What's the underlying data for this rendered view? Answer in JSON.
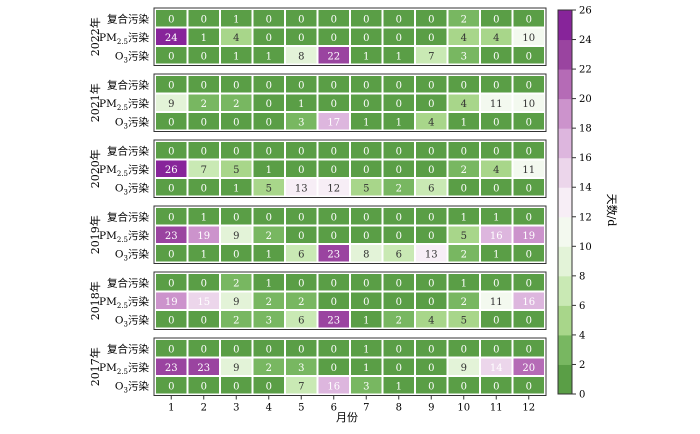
{
  "chart_data": {
    "type": "heatmap",
    "xlabel": "月份",
    "months": [
      "1",
      "2",
      "3",
      "4",
      "5",
      "6",
      "7",
      "8",
      "9",
      "10",
      "11",
      "12"
    ],
    "colorbar": {
      "label": "天数/d",
      "min": 0,
      "max": 26,
      "ticks": [
        "0",
        "2",
        "4",
        "6",
        "8",
        "10",
        "12",
        "14",
        "16",
        "18",
        "20",
        "22",
        "24",
        "26"
      ],
      "colors": [
        "#5a9e46",
        "#78b761",
        "#a8d68a",
        "#c9e9b4",
        "#e3f3d8",
        "#f3f9ef",
        "#f7eef6",
        "#ecd6eb",
        "#ddb6de",
        "#cc93cc",
        "#b56bb6",
        "#9a44a0",
        "#87249a"
      ]
    },
    "row_labels": {
      "compound": {
        "pre": "复合污染",
        "sub": "",
        "post": ""
      },
      "pm25": {
        "pre": "PM",
        "sub": "2.5",
        "post": "污染"
      },
      "o3": {
        "pre": "O",
        "sub": "3",
        "post": "污染"
      }
    },
    "years": [
      {
        "year": "2022年",
        "compound": [
          0,
          0,
          1,
          0,
          0,
          0,
          0,
          0,
          0,
          2,
          0,
          0
        ],
        "pm25": [
          24,
          1,
          4,
          0,
          0,
          0,
          0,
          0,
          0,
          4,
          4,
          10
        ],
        "o3": [
          0,
          0,
          1,
          1,
          8,
          22,
          1,
          1,
          7,
          3,
          0,
          0
        ]
      },
      {
        "year": "2021年",
        "compound": [
          0,
          0,
          0,
          0,
          0,
          0,
          0,
          0,
          0,
          0,
          0,
          0
        ],
        "pm25": [
          9,
          2,
          2,
          0,
          1,
          0,
          0,
          0,
          0,
          4,
          11,
          10
        ],
        "o3": [
          0,
          0,
          0,
          0,
          3,
          17,
          1,
          1,
          4,
          1,
          0,
          0
        ]
      },
      {
        "year": "2020年",
        "compound": [
          0,
          0,
          0,
          0,
          0,
          0,
          0,
          0,
          0,
          0,
          0,
          0
        ],
        "pm25": [
          26,
          7,
          5,
          1,
          0,
          0,
          0,
          0,
          0,
          2,
          4,
          11
        ],
        "o3": [
          0,
          0,
          1,
          5,
          13,
          12,
          5,
          2,
          6,
          0,
          0,
          0
        ]
      },
      {
        "year": "2019年",
        "compound": [
          0,
          1,
          0,
          0,
          0,
          0,
          0,
          0,
          0,
          1,
          1,
          0
        ],
        "pm25": [
          23,
          19,
          9,
          2,
          0,
          0,
          0,
          0,
          0,
          5,
          16,
          19
        ],
        "o3": [
          0,
          1,
          0,
          1,
          6,
          23,
          8,
          6,
          13,
          2,
          1,
          0
        ]
      },
      {
        "year": "2018年",
        "compound": [
          0,
          0,
          2,
          1,
          0,
          0,
          0,
          0,
          0,
          1,
          0,
          0
        ],
        "pm25": [
          19,
          15,
          9,
          2,
          2,
          0,
          0,
          0,
          0,
          2,
          11,
          16
        ],
        "o3": [
          0,
          0,
          2,
          3,
          6,
          23,
          1,
          2,
          4,
          5,
          0,
          0
        ]
      },
      {
        "year": "2017年",
        "compound": [
          0,
          0,
          0,
          0,
          0,
          0,
          1,
          0,
          0,
          0,
          0,
          0
        ],
        "pm25": [
          23,
          23,
          9,
          2,
          3,
          0,
          1,
          0,
          0,
          9,
          14,
          20
        ],
        "o3": [
          0,
          0,
          0,
          0,
          7,
          16,
          3,
          1,
          0,
          0,
          0,
          0
        ]
      }
    ]
  }
}
